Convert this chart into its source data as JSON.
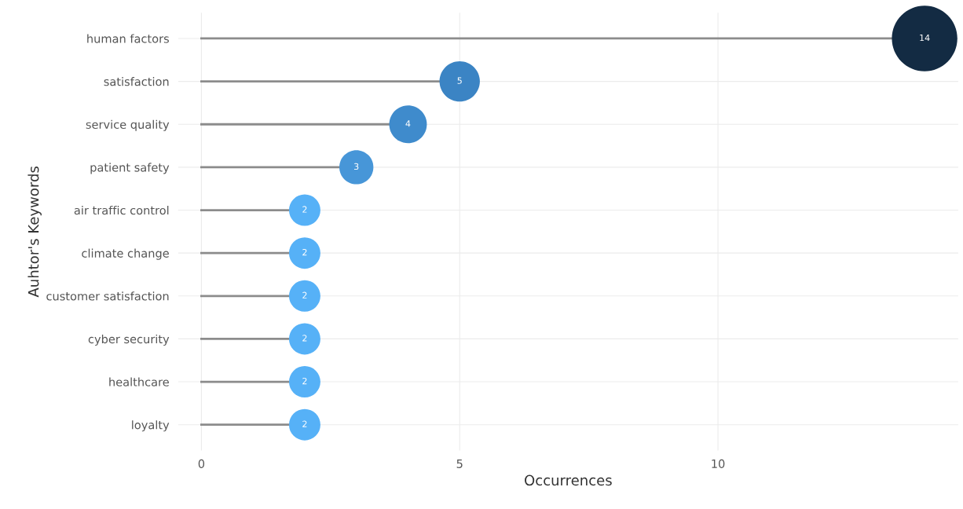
{
  "chart_data": {
    "type": "lollipop",
    "orientation": "horizontal",
    "xlabel": "Occurrences",
    "ylabel": "Auhtor's Keywords",
    "categories": [
      "human factors",
      "satisfaction",
      "service quality",
      "patient safety",
      "air traffic control",
      "climate change",
      "customer satisfaction",
      "cyber security",
      "healthcare",
      "loyalty"
    ],
    "values": [
      14,
      5,
      4,
      3,
      2,
      2,
      2,
      2,
      2,
      2
    ],
    "sizes": [
      1,
      0.38,
      0.33,
      0.27,
      0.23,
      0.23,
      0.23,
      0.23,
      0.23,
      0.23
    ],
    "colors": [
      "#132b43",
      "#3b84c4",
      "#3f8bcc",
      "#4796d8",
      "#56b1f7",
      "#56b1f7",
      "#56b1f7",
      "#56b1f7",
      "#56b1f7",
      "#56b1f7"
    ],
    "xlim": [
      -0.45,
      14.65
    ],
    "xticks": [
      0,
      5,
      10
    ],
    "grid": true,
    "data_labels": true
  }
}
